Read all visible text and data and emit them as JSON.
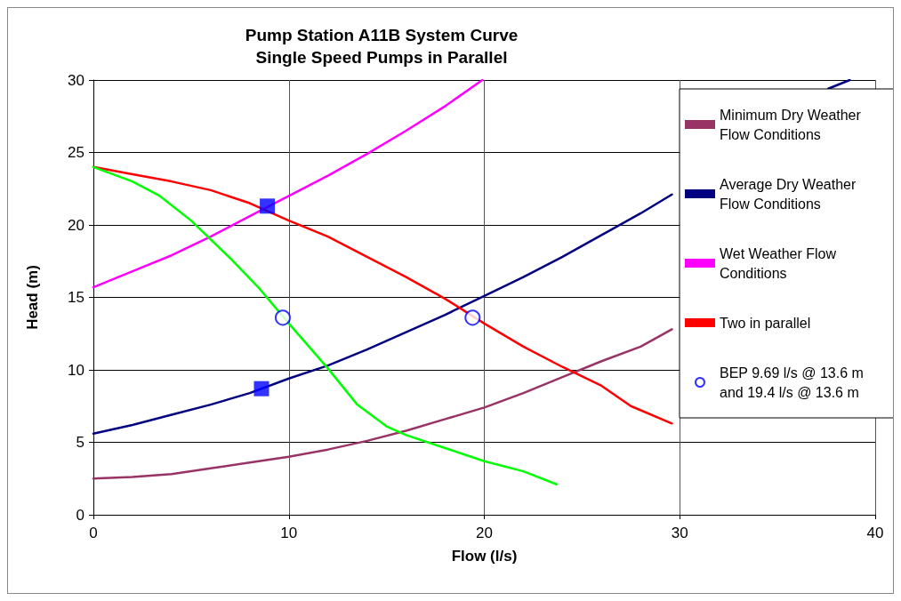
{
  "chart_data": {
    "type": "line",
    "title": "Pump Station A11B System Curve",
    "subtitle": "Single Speed Pumps in Parallel",
    "xlabel": "Flow (l/s)",
    "ylabel": "Head (m)",
    "xlim": [
      0,
      40
    ],
    "ylim": [
      0,
      30
    ],
    "xticks": [
      0,
      10,
      20,
      30,
      40
    ],
    "yticks": [
      0,
      5,
      10,
      15,
      20,
      25,
      30
    ],
    "grid": true,
    "legend": "right",
    "line_style": "solid",
    "series": [
      {
        "name": "Minimum Dry Weather Flow Conditions",
        "color": "#993366",
        "marker": "none",
        "x": [
          0,
          2,
          4,
          6,
          8,
          10,
          12,
          14,
          16,
          18,
          20,
          22,
          24,
          26,
          28,
          29.6
        ],
        "values": [
          2.5,
          2.6,
          2.8,
          3.2,
          3.6,
          4.0,
          4.5,
          5.1,
          5.8,
          6.6,
          7.4,
          8.4,
          9.5,
          10.6,
          11.6,
          12.8
        ]
      },
      {
        "name": "Average Dry Weather Flow Conditions",
        "color": "#000080",
        "marker": "none",
        "x": [
          0,
          2,
          4,
          6,
          8,
          10,
          12,
          14,
          16,
          18,
          20,
          22,
          24,
          26,
          28,
          29.6,
          33,
          37.6,
          38.7
        ],
        "values": [
          5.6,
          6.2,
          6.9,
          7.6,
          8.4,
          9.4,
          10.3,
          11.4,
          12.6,
          13.8,
          15.1,
          16.4,
          17.8,
          19.3,
          20.8,
          22.1,
          null,
          29.4,
          30
        ]
      },
      {
        "name": "Wet Weather Flow Conditions",
        "color": "#ff00ff",
        "marker": "none",
        "x": [
          0,
          2,
          4,
          6,
          8,
          10,
          12,
          14,
          16,
          18,
          19.9
        ],
        "values": [
          15.7,
          16.8,
          17.9,
          19.2,
          20.6,
          22.0,
          23.4,
          24.9,
          26.5,
          28.2,
          30
        ]
      },
      {
        "name": "Two in parallel",
        "color": "#ff0000",
        "marker": "none",
        "x": [
          0,
          2,
          4,
          6,
          8,
          10,
          12,
          14,
          16,
          18,
          20,
          22,
          24,
          26,
          27.5,
          29.6
        ],
        "values": [
          24,
          23.5,
          23,
          22.4,
          21.5,
          20.3,
          19.2,
          17.8,
          16.4,
          14.9,
          13.2,
          11.6,
          10.2,
          8.9,
          7.5,
          6.3
        ]
      },
      {
        "color": "#00ff00",
        "marker": "none",
        "x": [
          0,
          2,
          3.4,
          5,
          7,
          8.5,
          10,
          12,
          13.5,
          15,
          16,
          18,
          20,
          22,
          23.7
        ],
        "values": [
          24,
          23,
          22,
          20.3,
          17.7,
          15.6,
          13.2,
          10.1,
          7.6,
          6.1,
          5.5,
          4.6,
          3.7,
          3.0,
          2.1
        ]
      },
      {
        "type": "scatter",
        "color": "#0000ff",
        "marker": "square",
        "x": [
          8.9,
          8.6
        ],
        "values": [
          21.3,
          8.7
        ]
      },
      {
        "name": "BEP 9.69 l/s @ 13.6 m and 19.4 l/s @ 13.6 m",
        "type": "scatter",
        "color": "#0000ff",
        "marker": "circle",
        "x": [
          9.69,
          19.4
        ],
        "values": [
          13.6,
          13.6
        ]
      }
    ]
  }
}
